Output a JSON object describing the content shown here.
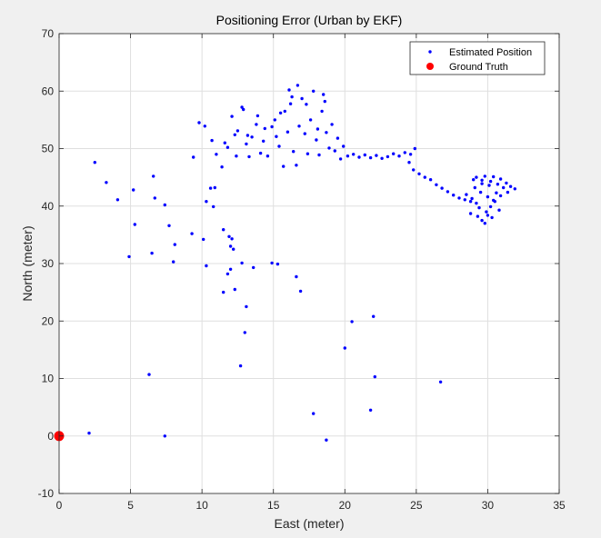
{
  "chart_data": {
    "type": "scatter",
    "title": "Positioning Error (Urban by EKF)",
    "xlabel": "East (meter)",
    "ylabel": "North (meter)",
    "xlim": [
      0,
      35
    ],
    "ylim": [
      -10,
      70
    ],
    "xticks": [
      0,
      5,
      10,
      15,
      20,
      25,
      30,
      35
    ],
    "yticks": [
      -10,
      0,
      10,
      20,
      30,
      40,
      50,
      60,
      70
    ],
    "grid": true,
    "legend_location": "top-right",
    "series": [
      {
        "name": "Estimated Position",
        "color": "#0000ff",
        "marker": "dot",
        "points": [
          [
            2.1,
            0.5
          ],
          [
            7.4,
            0.0
          ],
          [
            18.7,
            -0.7
          ],
          [
            17.8,
            3.9
          ],
          [
            21.8,
            4.5
          ],
          [
            6.3,
            10.7
          ],
          [
            12.7,
            12.2
          ],
          [
            22.1,
            10.3
          ],
          [
            26.7,
            9.4
          ],
          [
            20.0,
            15.3
          ],
          [
            20.5,
            19.9
          ],
          [
            22.0,
            20.8
          ],
          [
            4.9,
            31.2
          ],
          [
            6.5,
            31.8
          ],
          [
            8.0,
            30.3
          ],
          [
            10.3,
            29.6
          ],
          [
            11.5,
            25.0
          ],
          [
            12.0,
            29.0
          ],
          [
            12.8,
            30.1
          ],
          [
            13.6,
            29.3
          ],
          [
            14.9,
            30.1
          ],
          [
            15.3,
            29.9
          ],
          [
            11.8,
            28.2
          ],
          [
            12.3,
            25.5
          ],
          [
            13.1,
            22.5
          ],
          [
            13.0,
            18.0
          ],
          [
            16.6,
            27.7
          ],
          [
            16.9,
            25.2
          ],
          [
            2.5,
            47.6
          ],
          [
            3.3,
            44.1
          ],
          [
            4.1,
            41.1
          ],
          [
            5.2,
            42.8
          ],
          [
            5.3,
            36.8
          ],
          [
            6.6,
            45.2
          ],
          [
            6.7,
            41.4
          ],
          [
            7.4,
            40.2
          ],
          [
            7.7,
            36.6
          ],
          [
            8.1,
            33.3
          ],
          [
            9.3,
            35.2
          ],
          [
            9.4,
            48.5
          ],
          [
            10.1,
            34.2
          ],
          [
            10.3,
            40.8
          ],
          [
            10.6,
            43.1
          ],
          [
            10.9,
            43.2
          ],
          [
            10.8,
            39.9
          ],
          [
            11.5,
            35.9
          ],
          [
            11.9,
            34.7
          ],
          [
            12.1,
            34.3
          ],
          [
            12.0,
            33.0
          ],
          [
            12.2,
            32.5
          ],
          [
            11.0,
            49.0
          ],
          [
            11.4,
            46.8
          ],
          [
            11.8,
            50.2
          ],
          [
            12.3,
            52.4
          ],
          [
            12.1,
            55.6
          ],
          [
            12.5,
            53.1
          ],
          [
            12.8,
            57.2
          ],
          [
            13.1,
            50.8
          ],
          [
            13.3,
            48.6
          ],
          [
            13.5,
            52.0
          ],
          [
            13.9,
            55.7
          ],
          [
            14.3,
            51.3
          ],
          [
            14.6,
            48.7
          ],
          [
            14.9,
            53.8
          ],
          [
            15.1,
            55.0
          ],
          [
            15.4,
            50.4
          ],
          [
            15.7,
            46.9
          ],
          [
            16.0,
            52.9
          ],
          [
            16.2,
            57.8
          ],
          [
            16.4,
            49.5
          ],
          [
            16.6,
            47.1
          ],
          [
            16.8,
            53.9
          ],
          [
            17.0,
            58.7
          ],
          [
            17.2,
            52.6
          ],
          [
            17.4,
            49.1
          ],
          [
            17.6,
            55.0
          ],
          [
            17.8,
            60.0
          ],
          [
            18.0,
            51.5
          ],
          [
            18.2,
            48.9
          ],
          [
            18.4,
            56.5
          ],
          [
            18.5,
            59.4
          ],
          [
            18.7,
            52.8
          ],
          [
            18.9,
            50.1
          ],
          [
            19.1,
            54.2
          ],
          [
            19.3,
            49.6
          ],
          [
            19.5,
            51.8
          ],
          [
            19.7,
            48.2
          ],
          [
            19.9,
            50.4
          ],
          [
            15.8,
            56.5
          ],
          [
            16.3,
            59.0
          ],
          [
            16.7,
            61.0
          ],
          [
            16.1,
            60.2
          ],
          [
            15.5,
            56.2
          ],
          [
            14.4,
            53.5
          ],
          [
            13.8,
            54.2
          ],
          [
            12.9,
            56.8
          ],
          [
            10.2,
            53.9
          ],
          [
            9.8,
            54.5
          ],
          [
            10.7,
            51.4
          ],
          [
            11.6,
            51.0
          ],
          [
            12.4,
            48.7
          ],
          [
            13.2,
            52.3
          ],
          [
            14.1,
            49.2
          ],
          [
            15.2,
            52.1
          ],
          [
            17.3,
            57.7
          ],
          [
            18.6,
            58.2
          ],
          [
            18.1,
            53.4
          ],
          [
            20.2,
            48.7
          ],
          [
            20.6,
            49.0
          ],
          [
            21.0,
            48.5
          ],
          [
            21.4,
            48.9
          ],
          [
            21.8,
            48.4
          ],
          [
            22.2,
            48.8
          ],
          [
            22.6,
            48.3
          ],
          [
            23.0,
            48.6
          ],
          [
            23.4,
            49.1
          ],
          [
            23.8,
            48.7
          ],
          [
            24.2,
            49.3
          ],
          [
            24.6,
            49.0
          ],
          [
            24.9,
            50.0
          ],
          [
            24.5,
            47.6
          ],
          [
            24.8,
            46.3
          ],
          [
            25.2,
            45.6
          ],
          [
            25.6,
            45.0
          ],
          [
            26.0,
            44.6
          ],
          [
            26.4,
            43.7
          ],
          [
            26.8,
            43.1
          ],
          [
            27.2,
            42.5
          ],
          [
            27.6,
            41.9
          ],
          [
            28.0,
            41.4
          ],
          [
            28.4,
            41.1
          ],
          [
            28.8,
            40.8
          ],
          [
            29.2,
            40.5
          ],
          [
            28.8,
            38.7
          ],
          [
            29.3,
            38.2
          ],
          [
            29.6,
            37.5
          ],
          [
            29.8,
            37.0
          ],
          [
            30.0,
            38.4
          ],
          [
            30.2,
            39.9
          ],
          [
            30.4,
            41.0
          ],
          [
            30.6,
            42.3
          ],
          [
            30.1,
            43.6
          ],
          [
            29.6,
            44.5
          ],
          [
            29.2,
            45.0
          ],
          [
            29.8,
            45.2
          ],
          [
            30.4,
            45.1
          ],
          [
            30.9,
            44.7
          ],
          [
            31.3,
            44.0
          ],
          [
            31.6,
            43.4
          ],
          [
            31.9,
            43.0
          ],
          [
            31.4,
            42.4
          ],
          [
            30.9,
            41.8
          ],
          [
            30.5,
            40.8
          ],
          [
            30.0,
            41.6
          ],
          [
            29.5,
            42.4
          ],
          [
            29.1,
            43.2
          ],
          [
            29.6,
            43.9
          ],
          [
            30.2,
            44.3
          ],
          [
            30.7,
            43.8
          ],
          [
            31.1,
            43.2
          ],
          [
            30.8,
            39.3
          ],
          [
            30.3,
            38.0
          ],
          [
            29.9,
            39.0
          ],
          [
            29.4,
            39.7
          ],
          [
            28.9,
            41.3
          ],
          [
            28.5,
            42.0
          ],
          [
            29.0,
            44.6
          ]
        ]
      },
      {
        "name": "Ground Truth",
        "color": "#ff0000",
        "marker": "circle",
        "points": [
          [
            0,
            0
          ]
        ]
      }
    ]
  }
}
